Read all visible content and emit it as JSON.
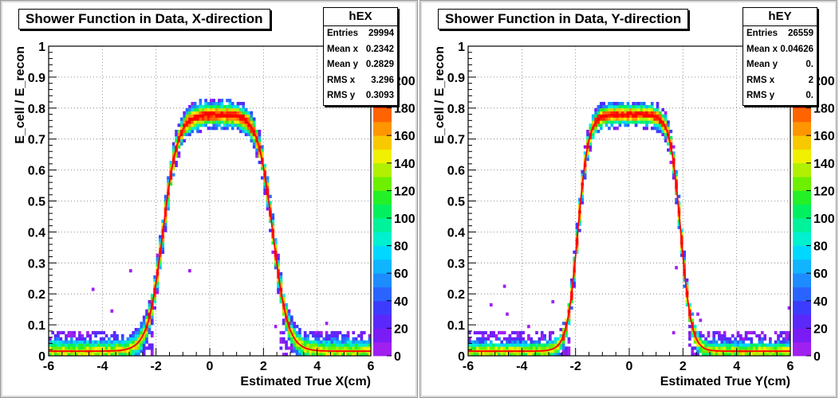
{
  "colors": {
    "palette": [
      "#a020f0",
      "#7a1cf5",
      "#5a28f8",
      "#3c3cff",
      "#2a64ff",
      "#1d8cff",
      "#10b4ff",
      "#00d8ff",
      "#00f0d0",
      "#00f29a",
      "#00f060",
      "#24f028",
      "#6cf000",
      "#b0f000",
      "#f0f000",
      "#f8c800",
      "#ff9600",
      "#ff6400",
      "#ff2800",
      "#ff0000"
    ],
    "fit_line": "#ff0000",
    "frame": "#d8d8d8"
  },
  "panels": [
    {
      "id": "left",
      "title": "Shower Function in Data, X-direction",
      "stats": {
        "name": "hEX",
        "rows": [
          {
            "label": "Entries",
            "value": "29994"
          },
          {
            "label": "Mean x",
            "value": "0.2342"
          },
          {
            "label": "Mean y",
            "value": "0.2829"
          },
          {
            "label": "RMS x",
            "value": "3.296"
          },
          {
            "label": "RMS y",
            "value": "0.3093"
          }
        ]
      },
      "chart_data": {
        "type": "heatmap",
        "histogram": "hEX",
        "xlabel": "Estimated True X(cm)",
        "ylabel": "E_cell / E_recon",
        "xlim": [
          -6,
          6
        ],
        "ylim": [
          0,
          1
        ],
        "xticks": [
          -6,
          -4,
          -2,
          0,
          2,
          4,
          6
        ],
        "yticks": [
          0,
          0.1,
          0.2,
          0.3,
          0.4,
          0.5,
          0.6,
          0.7,
          0.8,
          0.9,
          1
        ],
        "zlim": [
          0,
          200
        ],
        "zticks": [
          0,
          20,
          40,
          60,
          80,
          100,
          120,
          140,
          160,
          180,
          200
        ],
        "grid": true,
        "fit_curve": {
          "shape": "smoothed plateau",
          "amplitude": 0.78,
          "center": 0.3,
          "half_width": 2.05,
          "edge_width": 0.28,
          "baseline": 0.015
        },
        "band_width": 0.032
      }
    },
    {
      "id": "right",
      "title": "Shower Function in Data, Y-direction",
      "stats": {
        "name": "hEY",
        "rows": [
          {
            "label": "Entries",
            "value": "26559"
          },
          {
            "label": "Mean x",
            "value": "0.04626"
          },
          {
            "label": "Mean y",
            "value": "0."
          },
          {
            "label": "RMS x",
            "value": "2"
          },
          {
            "label": "RMS y",
            "value": "0."
          }
        ]
      },
      "chart_data": {
        "type": "heatmap",
        "histogram": "hEY",
        "xlabel": "Estimated True Y(cm)",
        "ylabel": "E_cell / E_recon",
        "xlim": [
          -6,
          6
        ],
        "ylim": [
          0,
          1
        ],
        "xticks": [
          -6,
          -4,
          -2,
          0,
          2,
          4,
          6
        ],
        "yticks": [
          0,
          0.1,
          0.2,
          0.3,
          0.4,
          0.5,
          0.6,
          0.7,
          0.8,
          0.9,
          1
        ],
        "zlim": [
          0,
          200
        ],
        "zticks": [
          0,
          20,
          40,
          60,
          80,
          100,
          120,
          140,
          160,
          180,
          200
        ],
        "grid": true,
        "fit_curve": {
          "shape": "smoothed plateau",
          "amplitude": 0.78,
          "center": 0.0,
          "half_width": 1.92,
          "edge_width": 0.2,
          "baseline": 0.015
        },
        "band_width": 0.028
      }
    }
  ]
}
